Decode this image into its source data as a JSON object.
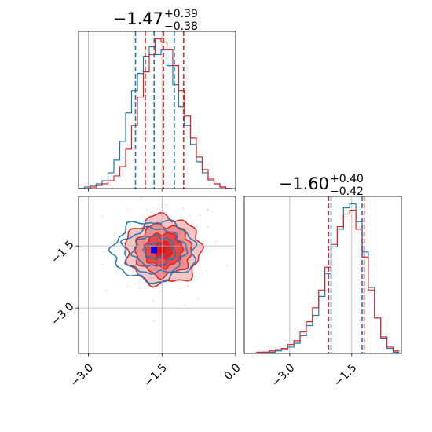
{
  "colors": {
    "blue": "#1f77b4",
    "red": "#d62728",
    "marker_blue": "#0000ff",
    "marker_red": "#ff0000"
  },
  "chart_data": [
    {
      "type": "histogram",
      "panel": "marginal-x",
      "title": {
        "median": "−1.47",
        "plus": "+0.39",
        "minus": "−0.38"
      },
      "x_range": [
        -3.2,
        0.0
      ],
      "quantile_lines": {
        "blue": [
          -2.04,
          -1.66,
          -1.25
        ],
        "red": [
          -1.84,
          -1.47,
          -1.06
        ]
      },
      "series": [
        {
          "name": "",
          "color": "blue",
          "bin_edges": [
            -3.2,
            -3.08,
            -2.96,
            -2.84,
            -2.72,
            -2.6,
            -2.48,
            -2.36,
            -2.24,
            -2.12,
            -2.0,
            -1.88,
            -1.76,
            -1.64,
            -1.52,
            -1.4,
            -1.28,
            -1.16,
            -1.04,
            -0.92,
            -0.8,
            -0.68,
            -0.56,
            -0.44,
            -0.32,
            -0.2,
            -0.08
          ],
          "counts": [
            0,
            1,
            2,
            3,
            5,
            10,
            18,
            30,
            48,
            62,
            73,
            84,
            90,
            85,
            88,
            78,
            66,
            52,
            40,
            28,
            17,
            10,
            5,
            3,
            1,
            0
          ]
        },
        {
          "name": "",
          "color": "red",
          "bin_edges": [
            -3.2,
            -3.08,
            -2.96,
            -2.84,
            -2.72,
            -2.6,
            -2.48,
            -2.36,
            -2.24,
            -2.12,
            -2.0,
            -1.88,
            -1.76,
            -1.64,
            -1.52,
            -1.4,
            -1.28,
            -1.16,
            -1.04,
            -0.92,
            -0.8,
            -0.68,
            -0.56,
            -0.44,
            -0.32,
            -0.2,
            -0.08
          ],
          "counts": [
            0,
            0,
            1,
            2,
            3,
            5,
            8,
            14,
            25,
            40,
            58,
            74,
            85,
            95,
            93,
            88,
            78,
            62,
            46,
            32,
            20,
            12,
            6,
            3,
            1,
            0
          ]
        }
      ]
    },
    {
      "type": "contour",
      "panel": "joint",
      "x_range": [
        -3.2,
        0.0
      ],
      "y_range": [
        -4.1,
        -0.3
      ],
      "x_ticks": [
        -3.0,
        -1.5,
        0.0
      ],
      "x_tick_labels": [
        "−3.0",
        "−1.5",
        "0.0"
      ],
      "y_ticks": [
        -3.0,
        -1.5
      ],
      "y_tick_labels": [
        "−3.0",
        "−1.5"
      ],
      "grid": true,
      "series": [
        {
          "name": "",
          "color": "red",
          "center": [
            -1.47,
            -1.6
          ],
          "sigma": [
            0.38,
            0.41
          ],
          "levels": [
            0.5,
            1.0,
            1.5,
            2.0
          ],
          "filled": true
        },
        {
          "name": "",
          "color": "blue",
          "center": [
            -1.66,
            -1.62
          ],
          "sigma": [
            0.4,
            0.38
          ],
          "levels": [
            0.5,
            1.0,
            1.5,
            2.0
          ],
          "filled": false
        }
      ],
      "markers": [
        {
          "color": "marker_blue",
          "x": -1.66,
          "y": -1.6
        },
        {
          "color": "marker_red",
          "x": -1.5,
          "y": -1.6
        }
      ]
    },
    {
      "type": "histogram",
      "panel": "marginal-y",
      "title": {
        "median": "−1.60",
        "plus": "+0.40",
        "minus": "−0.42"
      },
      "x_range": [
        -4.1,
        -0.3
      ],
      "x_ticks": [
        -3.0,
        -1.5
      ],
      "x_tick_labels": [
        "−3.0",
        "−1.5"
      ],
      "grid": true,
      "quantile_lines": {
        "blue": [
          -2.0,
          -1.25
        ],
        "red": [
          -2.06,
          -1.2
        ]
      },
      "series": [
        {
          "name": "",
          "color": "blue",
          "bin_edges": [
            -4.1,
            -3.95,
            -3.8,
            -3.65,
            -3.5,
            -3.35,
            -3.2,
            -3.05,
            -2.9,
            -2.75,
            -2.6,
            -2.45,
            -2.3,
            -2.15,
            -2.0,
            -1.85,
            -1.7,
            -1.55,
            -1.4,
            -1.25,
            -1.1,
            -0.95,
            -0.8,
            -0.65,
            -0.5,
            -0.35
          ],
          "counts": [
            0,
            0,
            0,
            1,
            1,
            2,
            3,
            5,
            8,
            14,
            22,
            30,
            45,
            63,
            84,
            98,
            115,
            118,
            104,
            80,
            52,
            28,
            12,
            4,
            1
          ]
        },
        {
          "name": "",
          "color": "red",
          "bin_edges": [
            -4.1,
            -3.95,
            -3.8,
            -3.65,
            -3.5,
            -3.35,
            -3.2,
            -3.05,
            -2.9,
            -2.75,
            -2.6,
            -2.45,
            -2.3,
            -2.15,
            -2.0,
            -1.85,
            -1.7,
            -1.55,
            -1.4,
            -1.25,
            -1.1,
            -0.95,
            -0.8,
            -0.65,
            -0.5,
            -0.35
          ],
          "counts": [
            0,
            0,
            1,
            1,
            2,
            3,
            4,
            7,
            10,
            17,
            25,
            36,
            50,
            68,
            86,
            100,
            110,
            113,
            98,
            76,
            50,
            28,
            13,
            5,
            2
          ]
        }
      ]
    }
  ]
}
